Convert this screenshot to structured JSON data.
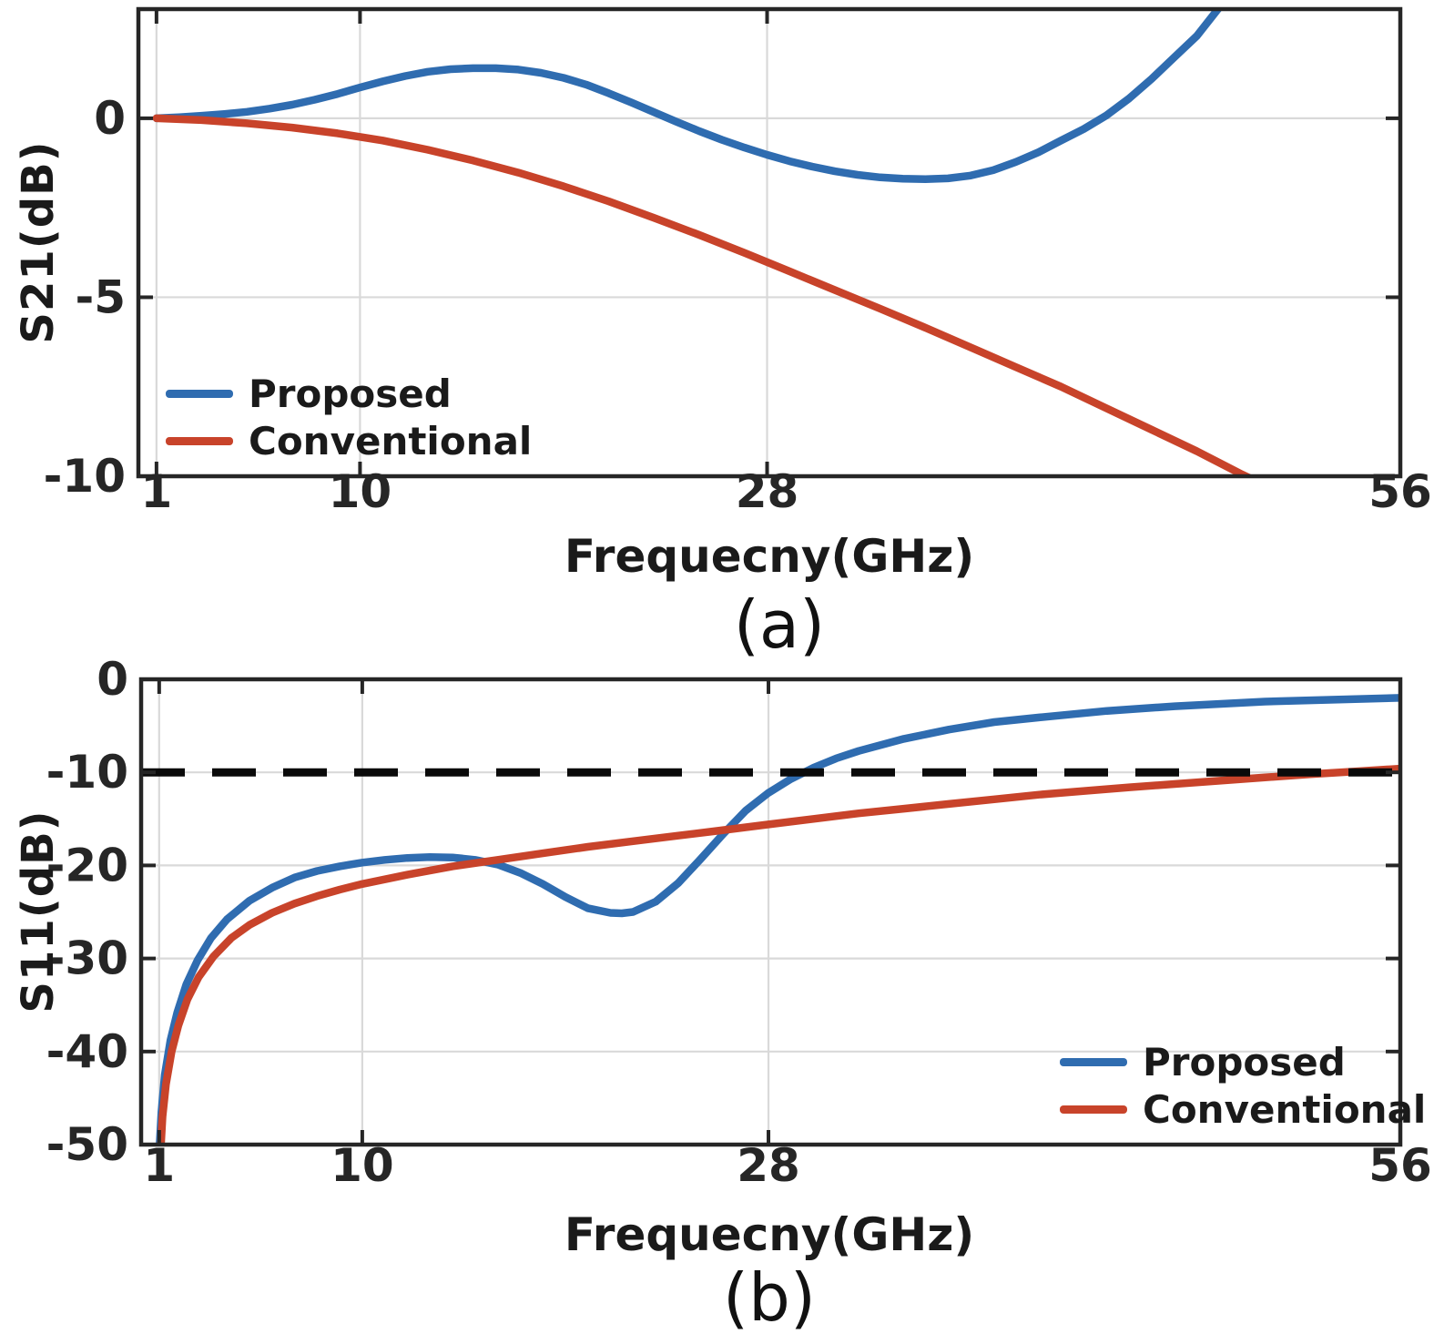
{
  "colors": {
    "proposed": "#2f6cb0",
    "conventional": "#c8432a",
    "grid": "#d9d9d9",
    "axis": "#262626",
    "tick_label": "#262626",
    "reference": "#0a0a0a"
  },
  "chart_data": [
    {
      "type": "line",
      "caption": "(a)",
      "xlabel": "Frequecny(GHz)",
      "ylabel": "S21(dB)",
      "xlim": [
        0.2,
        56
      ],
      "ylim": [
        -10,
        3.05
      ],
      "xticks": [
        1,
        10,
        28,
        56
      ],
      "yticks": [
        0,
        -5,
        -10
      ],
      "x_gridlines": [
        1,
        10,
        28
      ],
      "grid": true,
      "legend": {
        "position": "lower left",
        "entries": [
          "Proposed",
          "Conventional"
        ]
      },
      "series": [
        {
          "name": "Proposed",
          "color_key": "proposed",
          "x": [
            1,
            2,
            3,
            4,
            5,
            6,
            7,
            8,
            9,
            10,
            11,
            12,
            13,
            14,
            15,
            16,
            17,
            18,
            19,
            20,
            21,
            22,
            23,
            24,
            25,
            26,
            27,
            28,
            29,
            30,
            31,
            32,
            33,
            34,
            35,
            36,
            37,
            38,
            39,
            40,
            41,
            42,
            43,
            44,
            45,
            46,
            47,
            48,
            49
          ],
          "y": [
            0,
            0.03,
            0.07,
            0.12,
            0.18,
            0.27,
            0.38,
            0.52,
            0.68,
            0.86,
            1.03,
            1.18,
            1.3,
            1.37,
            1.4,
            1.4,
            1.36,
            1.27,
            1.13,
            0.94,
            0.7,
            0.44,
            0.17,
            -0.1,
            -0.36,
            -0.6,
            -0.82,
            -1.02,
            -1.2,
            -1.35,
            -1.48,
            -1.58,
            -1.65,
            -1.69,
            -1.7,
            -1.68,
            -1.6,
            -1.45,
            -1.22,
            -0.95,
            -0.62,
            -0.3,
            0.08,
            0.55,
            1.1,
            1.7,
            2.3,
            3.1,
            4.0
          ]
        },
        {
          "name": "Conventional",
          "color_key": "conventional",
          "x": [
            1,
            3,
            5,
            7,
            9,
            11,
            13,
            15,
            17,
            19,
            21,
            23,
            25,
            27,
            29,
            31,
            33,
            35,
            37,
            39,
            41,
            43,
            45,
            47,
            49,
            50.5
          ],
          "y": [
            0,
            -0.05,
            -0.14,
            -0.26,
            -0.42,
            -0.62,
            -0.88,
            -1.18,
            -1.52,
            -1.9,
            -2.32,
            -2.78,
            -3.26,
            -3.76,
            -4.28,
            -4.8,
            -5.32,
            -5.85,
            -6.4,
            -6.95,
            -7.5,
            -8.1,
            -8.7,
            -9.3,
            -9.95,
            -10.4
          ]
        }
      ]
    },
    {
      "type": "line",
      "caption": "(b)",
      "xlabel": "Frequecny(GHz)",
      "ylabel": "S11(dB)",
      "xlim": [
        0.2,
        56
      ],
      "ylim": [
        -50,
        0
      ],
      "xticks": [
        1,
        10,
        28,
        56
      ],
      "yticks": [
        0,
        -10,
        -20,
        -30,
        -40,
        -50
      ],
      "x_gridlines": [
        1,
        10,
        28
      ],
      "grid": true,
      "reference_line": {
        "y": -10,
        "style": "dashed"
      },
      "legend": {
        "position": "lower right",
        "entries": [
          "Proposed",
          "Conventional"
        ]
      },
      "series": [
        {
          "name": "Proposed",
          "color_key": "proposed",
          "x": [
            1.02,
            1.1,
            1.25,
            1.5,
            1.8,
            2.2,
            2.7,
            3.3,
            4,
            5,
            6,
            7,
            8,
            9,
            10,
            11,
            12,
            13,
            14,
            15,
            16,
            17,
            18,
            19,
            20,
            21,
            21.5,
            22,
            23,
            24,
            25,
            26,
            27,
            28,
            29,
            30,
            31,
            32,
            34,
            36,
            38,
            40,
            43,
            46,
            50,
            56
          ],
          "y": [
            -50,
            -46.5,
            -42.5,
            -38.8,
            -35.8,
            -32.8,
            -30.2,
            -27.8,
            -25.8,
            -23.8,
            -22.4,
            -21.3,
            -20.6,
            -20.1,
            -19.7,
            -19.4,
            -19.2,
            -19.1,
            -19.15,
            -19.4,
            -19.9,
            -20.8,
            -22.0,
            -23.4,
            -24.6,
            -25.1,
            -25.15,
            -25.0,
            -23.9,
            -21.9,
            -19.3,
            -16.6,
            -14.1,
            -12.2,
            -10.7,
            -9.5,
            -8.5,
            -7.7,
            -6.4,
            -5.4,
            -4.6,
            -4.1,
            -3.4,
            -2.9,
            -2.4,
            -2.0
          ]
        },
        {
          "name": "Conventional",
          "color_key": "conventional",
          "x": [
            1.08,
            1.15,
            1.3,
            1.55,
            1.85,
            2.25,
            2.75,
            3.4,
            4.2,
            5,
            6,
            7,
            8,
            9,
            10,
            12,
            14,
            16,
            18,
            20,
            22,
            24,
            26,
            28,
            30,
            32,
            34,
            36,
            38,
            40,
            42,
            44,
            46,
            48,
            50,
            52,
            54,
            56
          ],
          "y": [
            -50,
            -47,
            -43.5,
            -40,
            -37.2,
            -34.4,
            -32,
            -29.8,
            -27.8,
            -26.4,
            -25.1,
            -24.1,
            -23.3,
            -22.6,
            -22.0,
            -21.0,
            -20.1,
            -19.4,
            -18.7,
            -18.0,
            -17.4,
            -16.8,
            -16.2,
            -15.6,
            -15.0,
            -14.4,
            -13.9,
            -13.4,
            -12.9,
            -12.4,
            -12.0,
            -11.6,
            -11.25,
            -10.9,
            -10.55,
            -10.2,
            -9.9,
            -9.6
          ]
        }
      ]
    }
  ]
}
